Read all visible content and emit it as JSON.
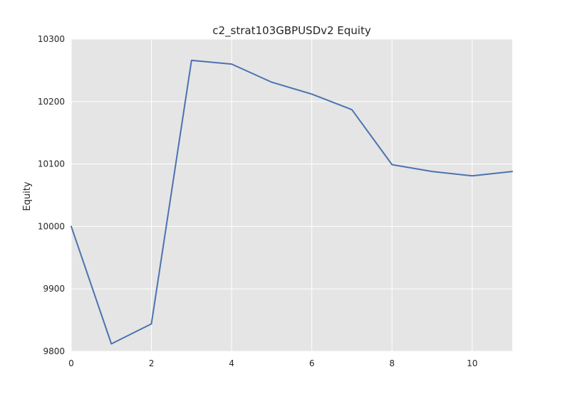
{
  "chart_data": {
    "type": "line",
    "title": "c2_strat103GBPUSDv2 Equity",
    "xlabel": "",
    "ylabel": "Equity",
    "xlim": [
      0,
      11
    ],
    "ylim": [
      9800,
      10300
    ],
    "xticks": [
      0,
      2,
      4,
      6,
      8,
      10
    ],
    "yticks": [
      9800,
      9900,
      10000,
      10100,
      10200,
      10300
    ],
    "grid": true,
    "background": "#e5e5e5",
    "grid_color": "#ffffff",
    "series": [
      {
        "color": "#4c72b0",
        "x": [
          0,
          1,
          2,
          3,
          4,
          5,
          6,
          7,
          8,
          9,
          10,
          11
        ],
        "values": [
          10000,
          9812,
          9844,
          10266,
          10260,
          10231,
          10212,
          10187,
          10099,
          10088,
          10081,
          10088
        ]
      }
    ]
  }
}
